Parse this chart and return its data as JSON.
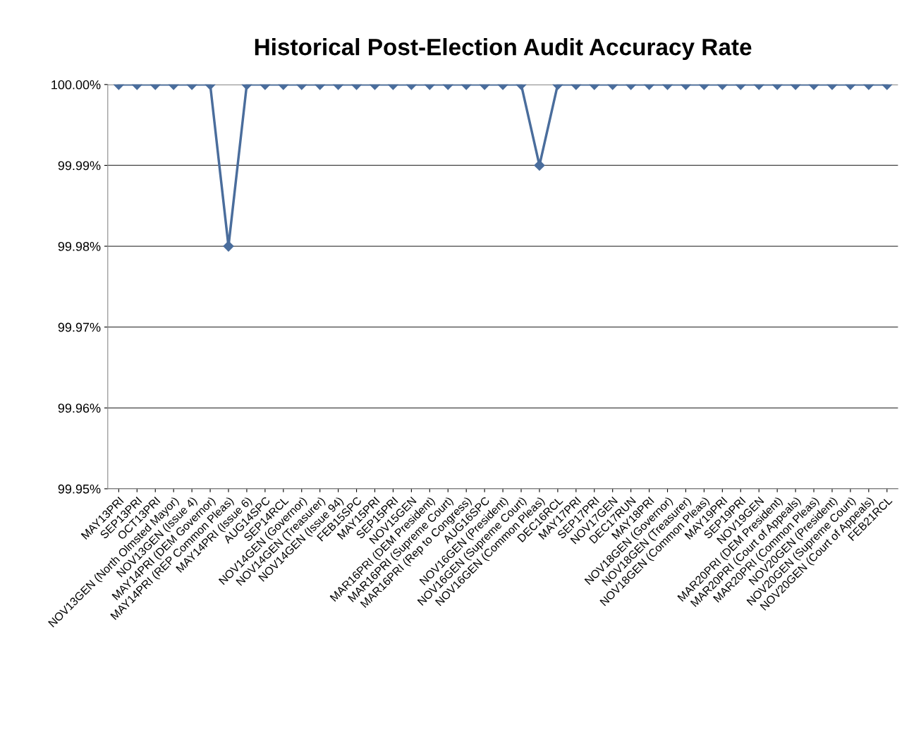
{
  "chart_data": {
    "type": "line",
    "title": "Historical Post-Election Audit Accuracy Rate",
    "categories": [
      "MAY13PRI",
      "SEP13PRI",
      "OCT13PRI",
      "NOV13GEN (North Olmsted Mayor)",
      "NOV13GEN (Issue 4)",
      "MAY14PRI (DEM Governor)",
      "MAY14PRI (REP Common Pleas)",
      "MAY14PRI (Issue 6)",
      "AUG14SPC",
      "SEP14RCL",
      "NOV14GEN (Governor)",
      "NOV14GEN (Treasurer)",
      "NOV14GEN (Issue 94)",
      "FEB15SPC",
      "MAY15PRI",
      "SEP15PRI",
      "NOV15GEN",
      "MAR16PRI (DEM President)",
      "MAR16PRI (Supreme Court)",
      "MAR16PRI (Rep to Congress)",
      "AUG16SPC",
      "NOV16GEN (President)",
      "NOV16GEN (Supreme Court)",
      "NOV16GEN (Common Pleas)",
      "DEC16RCL",
      "MAY17PRI",
      "SEP17PRI",
      "NOV17GEN",
      "DEC17RUN",
      "MAY18PRI",
      "NOV18GEN (Governor)",
      "NOV18GEN (Treasurer)",
      "NOV18GEN (Common Pleas)",
      "MAY19PRI",
      "SEP19PRI",
      "NOV19GEN",
      "MAR20PRI (DEM President)",
      "MAR20PRI (Court of Appeals)",
      "MAR20PRI (Common Pleas)",
      "NOV20GEN (President)",
      "NOV20GEN (Supreme Court)",
      "NOV20GEN (Court of Appeals)",
      "FEB21RCL"
    ],
    "series": [
      {
        "color": "#4a6d9c",
        "values": [
          100,
          100,
          100,
          100,
          100,
          100,
          99.98,
          100,
          100,
          100,
          100,
          100,
          100,
          100,
          100,
          100,
          100,
          100,
          100,
          100,
          100,
          100,
          100,
          99.99,
          100,
          100,
          100,
          100,
          100,
          100,
          100,
          100,
          100,
          100,
          100,
          100,
          100,
          100,
          100,
          100,
          100,
          100,
          100
        ]
      }
    ],
    "ylim": [
      99.95,
      100.0
    ],
    "yticks": [
      {
        "value": 99.95,
        "label": "99.95%"
      },
      {
        "value": 99.96,
        "label": "99.96%"
      },
      {
        "value": 99.97,
        "label": "99.97%"
      },
      {
        "value": 99.98,
        "label": "99.98%"
      },
      {
        "value": 99.99,
        "label": "99.99%"
      },
      {
        "value": 100.0,
        "label": "100.00%"
      }
    ],
    "grid": "y",
    "marker": "diamond",
    "line_style": "solid"
  }
}
